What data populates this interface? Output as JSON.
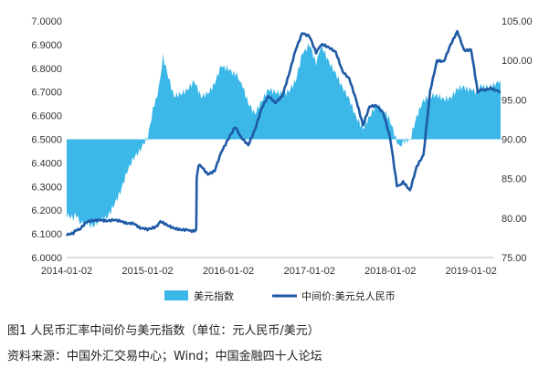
{
  "chart_data": {
    "type": "area+line",
    "title": "",
    "legend_position": "bottom",
    "grid": false,
    "x_axis": {
      "type": "date",
      "ticks": [
        "2014-01-02",
        "2015-01-02",
        "2016-01-02",
        "2017-01-02",
        "2018-01-02",
        "2019-01-02"
      ],
      "range": [
        "2014-01-02",
        "2019-05-15"
      ]
    },
    "y_left": {
      "range": [
        6.0,
        7.0
      ],
      "ticks": [
        "6.0000",
        "6.1000",
        "6.2000",
        "6.3000",
        "6.4000",
        "6.5000",
        "6.6000",
        "6.7000",
        "6.8000",
        "6.9000",
        "7.0000"
      ]
    },
    "y_right": {
      "range": [
        75,
        105
      ],
      "baseline": 90,
      "ticks": [
        "75.00",
        "80.00",
        "85.00",
        "90.00",
        "95.00",
        "100.00",
        "105.00"
      ]
    },
    "series": [
      {
        "name": "美元指数",
        "type": "area",
        "axis": "right",
        "color": "#3bb7e8",
        "points": [
          [
            "2014-01-02",
            80.5
          ],
          [
            "2014-02-01",
            80.2
          ],
          [
            "2014-03-01",
            79.7
          ],
          [
            "2014-04-01",
            79.8
          ],
          [
            "2014-05-01",
            79.4
          ],
          [
            "2014-06-01",
            80.2
          ],
          [
            "2014-07-01",
            80.4
          ],
          [
            "2014-08-01",
            81.6
          ],
          [
            "2014-09-01",
            83.0
          ],
          [
            "2014-10-01",
            85.6
          ],
          [
            "2014-11-01",
            87.2
          ],
          [
            "2014-12-01",
            88.2
          ],
          [
            "2015-01-02",
            90.2
          ],
          [
            "2015-02-01",
            94.5
          ],
          [
            "2015-03-01",
            97.5
          ],
          [
            "2015-03-13",
            100.1
          ],
          [
            "2015-04-01",
            98.0
          ],
          [
            "2015-05-01",
            95.0
          ],
          [
            "2015-06-01",
            95.5
          ],
          [
            "2015-07-01",
            96.0
          ],
          [
            "2015-08-01",
            97.5
          ],
          [
            "2015-09-01",
            95.8
          ],
          [
            "2015-10-01",
            96.2
          ],
          [
            "2015-11-01",
            97.5
          ],
          [
            "2015-12-01",
            99.8
          ],
          [
            "2016-01-02",
            98.7
          ],
          [
            "2016-02-01",
            98.0
          ],
          [
            "2016-03-01",
            97.5
          ],
          [
            "2016-04-01",
            94.5
          ],
          [
            "2016-05-01",
            93.2
          ],
          [
            "2016-06-01",
            94.5
          ],
          [
            "2016-07-01",
            96.0
          ],
          [
            "2016-08-01",
            95.5
          ],
          [
            "2016-09-01",
            95.5
          ],
          [
            "2016-10-01",
            95.8
          ],
          [
            "2016-11-01",
            97.5
          ],
          [
            "2016-12-01",
            101.0
          ],
          [
            "2017-01-02",
            102.5
          ],
          [
            "2017-02-01",
            100.0
          ],
          [
            "2017-03-01",
            101.5
          ],
          [
            "2017-04-01",
            100.0
          ],
          [
            "2017-05-01",
            98.5
          ],
          [
            "2017-06-01",
            97.0
          ],
          [
            "2017-07-01",
            95.5
          ],
          [
            "2017-08-01",
            93.2
          ],
          [
            "2017-09-01",
            91.4
          ],
          [
            "2017-10-01",
            93.0
          ],
          [
            "2017-11-01",
            94.2
          ],
          [
            "2017-12-01",
            93.3
          ],
          [
            "2018-01-02",
            92.0
          ],
          [
            "2018-02-01",
            89.3
          ],
          [
            "2018-03-01",
            89.7
          ],
          [
            "2018-04-01",
            89.5
          ],
          [
            "2018-05-01",
            92.5
          ],
          [
            "2018-06-01",
            94.5
          ],
          [
            "2018-07-01",
            95.0
          ],
          [
            "2018-08-01",
            95.3
          ],
          [
            "2018-09-01",
            95.2
          ],
          [
            "2018-10-01",
            95.3
          ],
          [
            "2018-11-01",
            96.8
          ],
          [
            "2018-12-01",
            97.0
          ],
          [
            "2019-01-02",
            96.5
          ],
          [
            "2019-02-01",
            96.0
          ],
          [
            "2019-03-01",
            96.8
          ],
          [
            "2019-04-01",
            97.2
          ],
          [
            "2019-05-15",
            97.5
          ]
        ]
      },
      {
        "name": "中间价:美元兑人民币",
        "type": "line",
        "axis": "left",
        "color": "#1f5aa6",
        "points": [
          [
            "2014-01-02",
            6.097
          ],
          [
            "2014-02-01",
            6.105
          ],
          [
            "2014-03-01",
            6.12
          ],
          [
            "2014-04-01",
            6.155
          ],
          [
            "2014-05-01",
            6.16
          ],
          [
            "2014-06-01",
            6.162
          ],
          [
            "2014-07-01",
            6.158
          ],
          [
            "2014-08-01",
            6.16
          ],
          [
            "2014-09-01",
            6.152
          ],
          [
            "2014-10-01",
            6.142
          ],
          [
            "2014-11-01",
            6.14
          ],
          [
            "2014-12-01",
            6.12
          ],
          [
            "2015-01-02",
            6.12
          ],
          [
            "2015-02-01",
            6.127
          ],
          [
            "2015-03-01",
            6.15
          ],
          [
            "2015-04-01",
            6.133
          ],
          [
            "2015-05-01",
            6.12
          ],
          [
            "2015-06-01",
            6.115
          ],
          [
            "2015-07-01",
            6.115
          ],
          [
            "2015-08-10",
            6.116
          ],
          [
            "2015-08-12",
            6.33
          ],
          [
            "2015-08-20",
            6.395
          ],
          [
            "2015-09-01",
            6.39
          ],
          [
            "2015-10-01",
            6.355
          ],
          [
            "2015-11-01",
            6.37
          ],
          [
            "2015-12-01",
            6.45
          ],
          [
            "2016-01-02",
            6.5
          ],
          [
            "2016-02-01",
            6.55
          ],
          [
            "2016-03-01",
            6.51
          ],
          [
            "2016-04-01",
            6.475
          ],
          [
            "2016-05-01",
            6.54
          ],
          [
            "2016-06-01",
            6.63
          ],
          [
            "2016-07-01",
            6.68
          ],
          [
            "2016-08-01",
            6.65
          ],
          [
            "2016-09-01",
            6.68
          ],
          [
            "2016-10-01",
            6.77
          ],
          [
            "2016-11-01",
            6.88
          ],
          [
            "2016-12-01",
            6.95
          ],
          [
            "2017-01-02",
            6.94
          ],
          [
            "2017-02-01",
            6.87
          ],
          [
            "2017-03-01",
            6.9
          ],
          [
            "2017-04-01",
            6.89
          ],
          [
            "2017-05-01",
            6.87
          ],
          [
            "2017-06-01",
            6.79
          ],
          [
            "2017-07-01",
            6.76
          ],
          [
            "2017-08-01",
            6.67
          ],
          [
            "2017-09-01",
            6.56
          ],
          [
            "2017-10-01",
            6.64
          ],
          [
            "2017-11-01",
            6.64
          ],
          [
            "2017-12-01",
            6.61
          ],
          [
            "2018-01-02",
            6.5
          ],
          [
            "2018-02-01",
            6.3
          ],
          [
            "2018-03-01",
            6.32
          ],
          [
            "2018-04-01",
            6.28
          ],
          [
            "2018-05-01",
            6.38
          ],
          [
            "2018-06-01",
            6.43
          ],
          [
            "2018-07-01",
            6.7
          ],
          [
            "2018-08-01",
            6.83
          ],
          [
            "2018-09-01",
            6.83
          ],
          [
            "2018-10-01",
            6.9
          ],
          [
            "2018-11-01",
            6.96
          ],
          [
            "2018-12-01",
            6.88
          ],
          [
            "2019-01-02",
            6.88
          ],
          [
            "2019-02-01",
            6.7
          ],
          [
            "2019-03-01",
            6.71
          ],
          [
            "2019-04-01",
            6.72
          ],
          [
            "2019-05-15",
            6.7
          ]
        ]
      }
    ]
  },
  "caption": {
    "line1": "图1   人民币汇率中间价与美元指数（单位：元人民币/美元）",
    "line2": "资料来源：中国外汇交易中心；Wind；中国金融四十人论坛"
  }
}
